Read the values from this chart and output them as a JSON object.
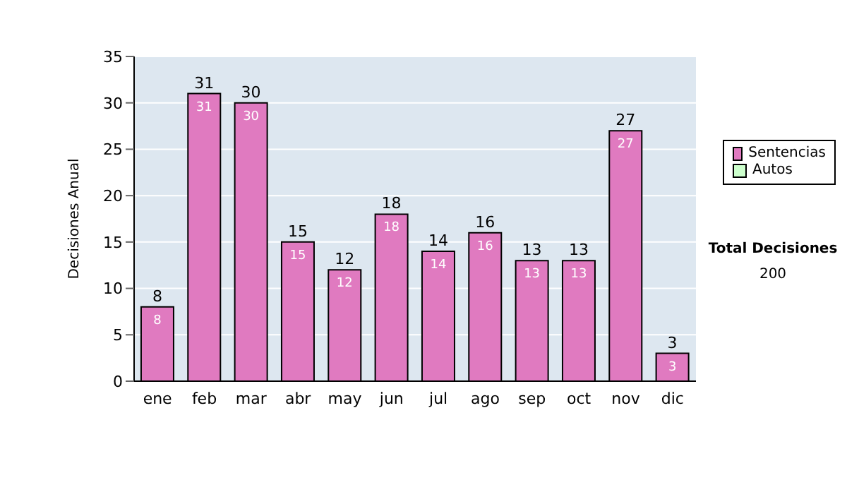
{
  "chart_data": {
    "type": "bar",
    "ylabel": "Decisiones Anual",
    "categories": [
      "ene",
      "feb",
      "mar",
      "abr",
      "may",
      "jun",
      "jul",
      "ago",
      "sep",
      "oct",
      "nov",
      "dic"
    ],
    "series": [
      {
        "name": "Sentencias",
        "color": "#e07ac0",
        "values": [
          8,
          31,
          30,
          15,
          12,
          18,
          14,
          16,
          13,
          13,
          27,
          3
        ],
        "value_labels": [
          "8",
          "31",
          "30",
          "15",
          "12",
          "18",
          "14",
          "16",
          "13",
          "13",
          "27",
          "3"
        ]
      },
      {
        "name": "Autos",
        "color": "#ccffcc",
        "values": [
          0,
          0,
          0,
          0,
          0,
          0,
          0,
          0,
          0,
          0,
          0,
          0
        ]
      }
    ],
    "stacked": true,
    "totals": [
      "8",
      "31",
      "30",
      "15",
      "12",
      "18",
      "14",
      "16",
      "13",
      "13",
      "27",
      "3"
    ],
    "ylim": [
      0,
      35
    ],
    "yticks": [
      0,
      5,
      10,
      15,
      20,
      25,
      30,
      35
    ],
    "grid": "y",
    "legend": "right",
    "annotations": [
      "Total Decisiones",
      "200"
    ]
  }
}
